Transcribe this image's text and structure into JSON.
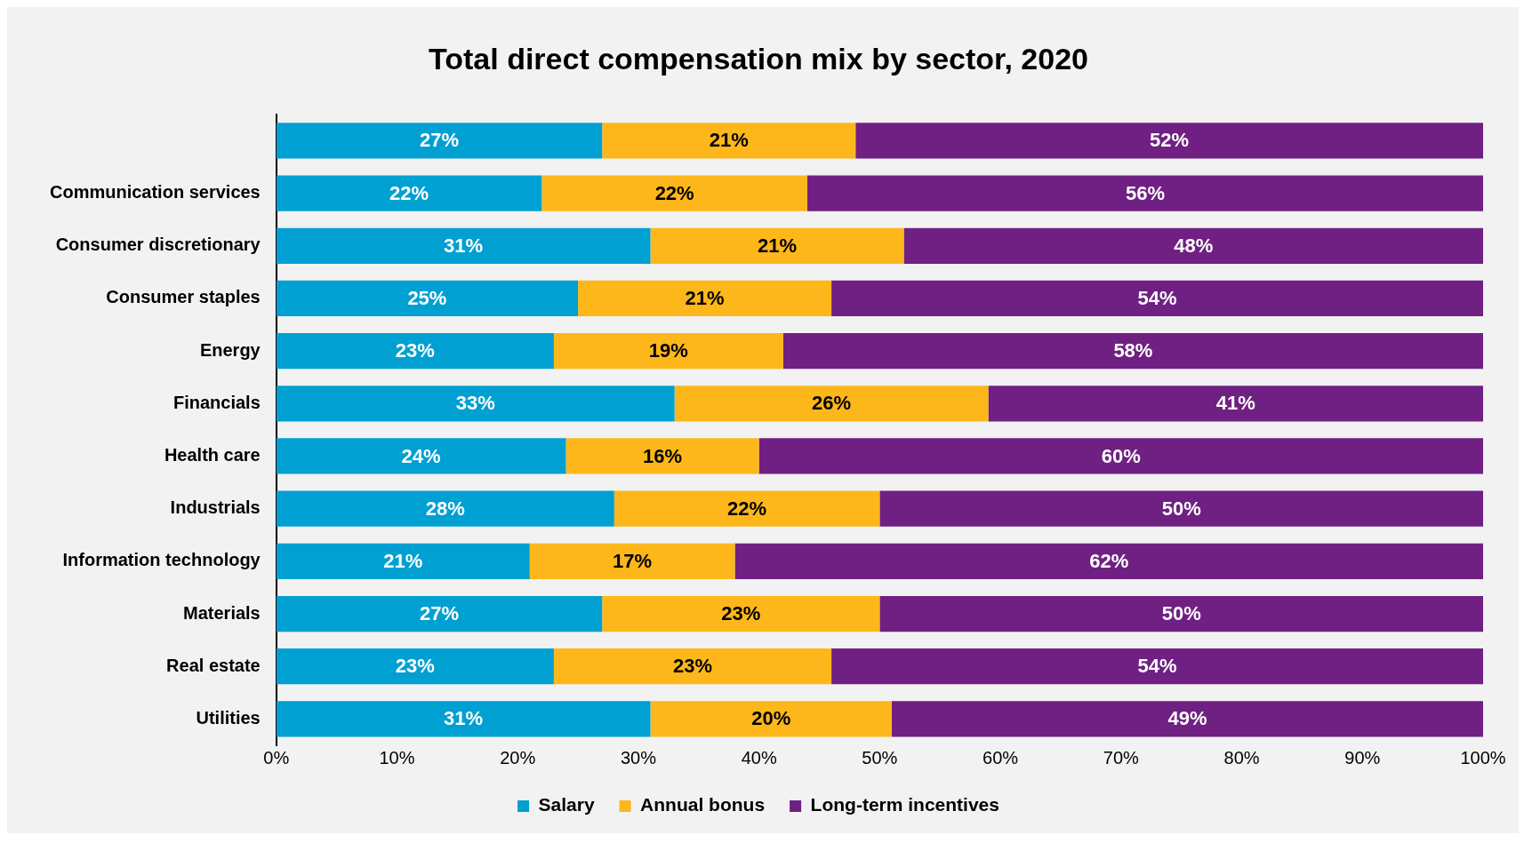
{
  "chart_data": {
    "type": "bar",
    "orientation": "horizontal",
    "stacked": true,
    "title": "Total direct compensation mix by sector, 2020",
    "categories": [
      null,
      "Communication services",
      "Consumer discretionary",
      "Consumer staples",
      "Energy",
      "Financials",
      "Health care",
      "Industrials",
      "Information technology",
      "Materials",
      "Real estate",
      "Utilities"
    ],
    "series": [
      {
        "name": "Salary",
        "color": "#00a0d2",
        "values": [
          27,
          22,
          31,
          25,
          23,
          33,
          24,
          28,
          21,
          27,
          23,
          31
        ],
        "value_labels": [
          "27%",
          "22%",
          "31%",
          "25%",
          "23%",
          "33%",
          "24%",
          "28%",
          "21%",
          "27%",
          "23%",
          "31%"
        ]
      },
      {
        "name": "Annual bonus",
        "color": "#fdb71a",
        "values": [
          21,
          22,
          21,
          21,
          19,
          26,
          16,
          22,
          17,
          23,
          23,
          20
        ],
        "value_labels": [
          "21%",
          "22%",
          "21%",
          "21%",
          "19%",
          "26%",
          "16%",
          "22%",
          "17%",
          "23%",
          "23%",
          "20%"
        ]
      },
      {
        "name": "Long-term incentives",
        "color": "#6f2082",
        "values": [
          52,
          56,
          48,
          54,
          58,
          41,
          60,
          50,
          62,
          50,
          54,
          49
        ],
        "value_labels": [
          "52%",
          "56%",
          "48%",
          "54%",
          "58%",
          "41%",
          "60%",
          "50%",
          "62%",
          "50%",
          "54%",
          "49%"
        ]
      }
    ],
    "xlim": [
      0,
      100
    ],
    "xticks": [
      {
        "value": 0,
        "label": "0%"
      },
      {
        "value": 10,
        "label": "10%"
      },
      {
        "value": 20,
        "label": "20%"
      },
      {
        "value": 30,
        "label": "30%"
      },
      {
        "value": 40,
        "label": "40%"
      },
      {
        "value": 50,
        "label": "50%"
      },
      {
        "value": 60,
        "label": "60%"
      },
      {
        "value": 70,
        "label": "70%"
      },
      {
        "value": 80,
        "label": "80%"
      },
      {
        "value": 90,
        "label": "90%"
      },
      {
        "value": 100,
        "label": "100%"
      }
    ],
    "legend": "bottom",
    "grid": false
  }
}
